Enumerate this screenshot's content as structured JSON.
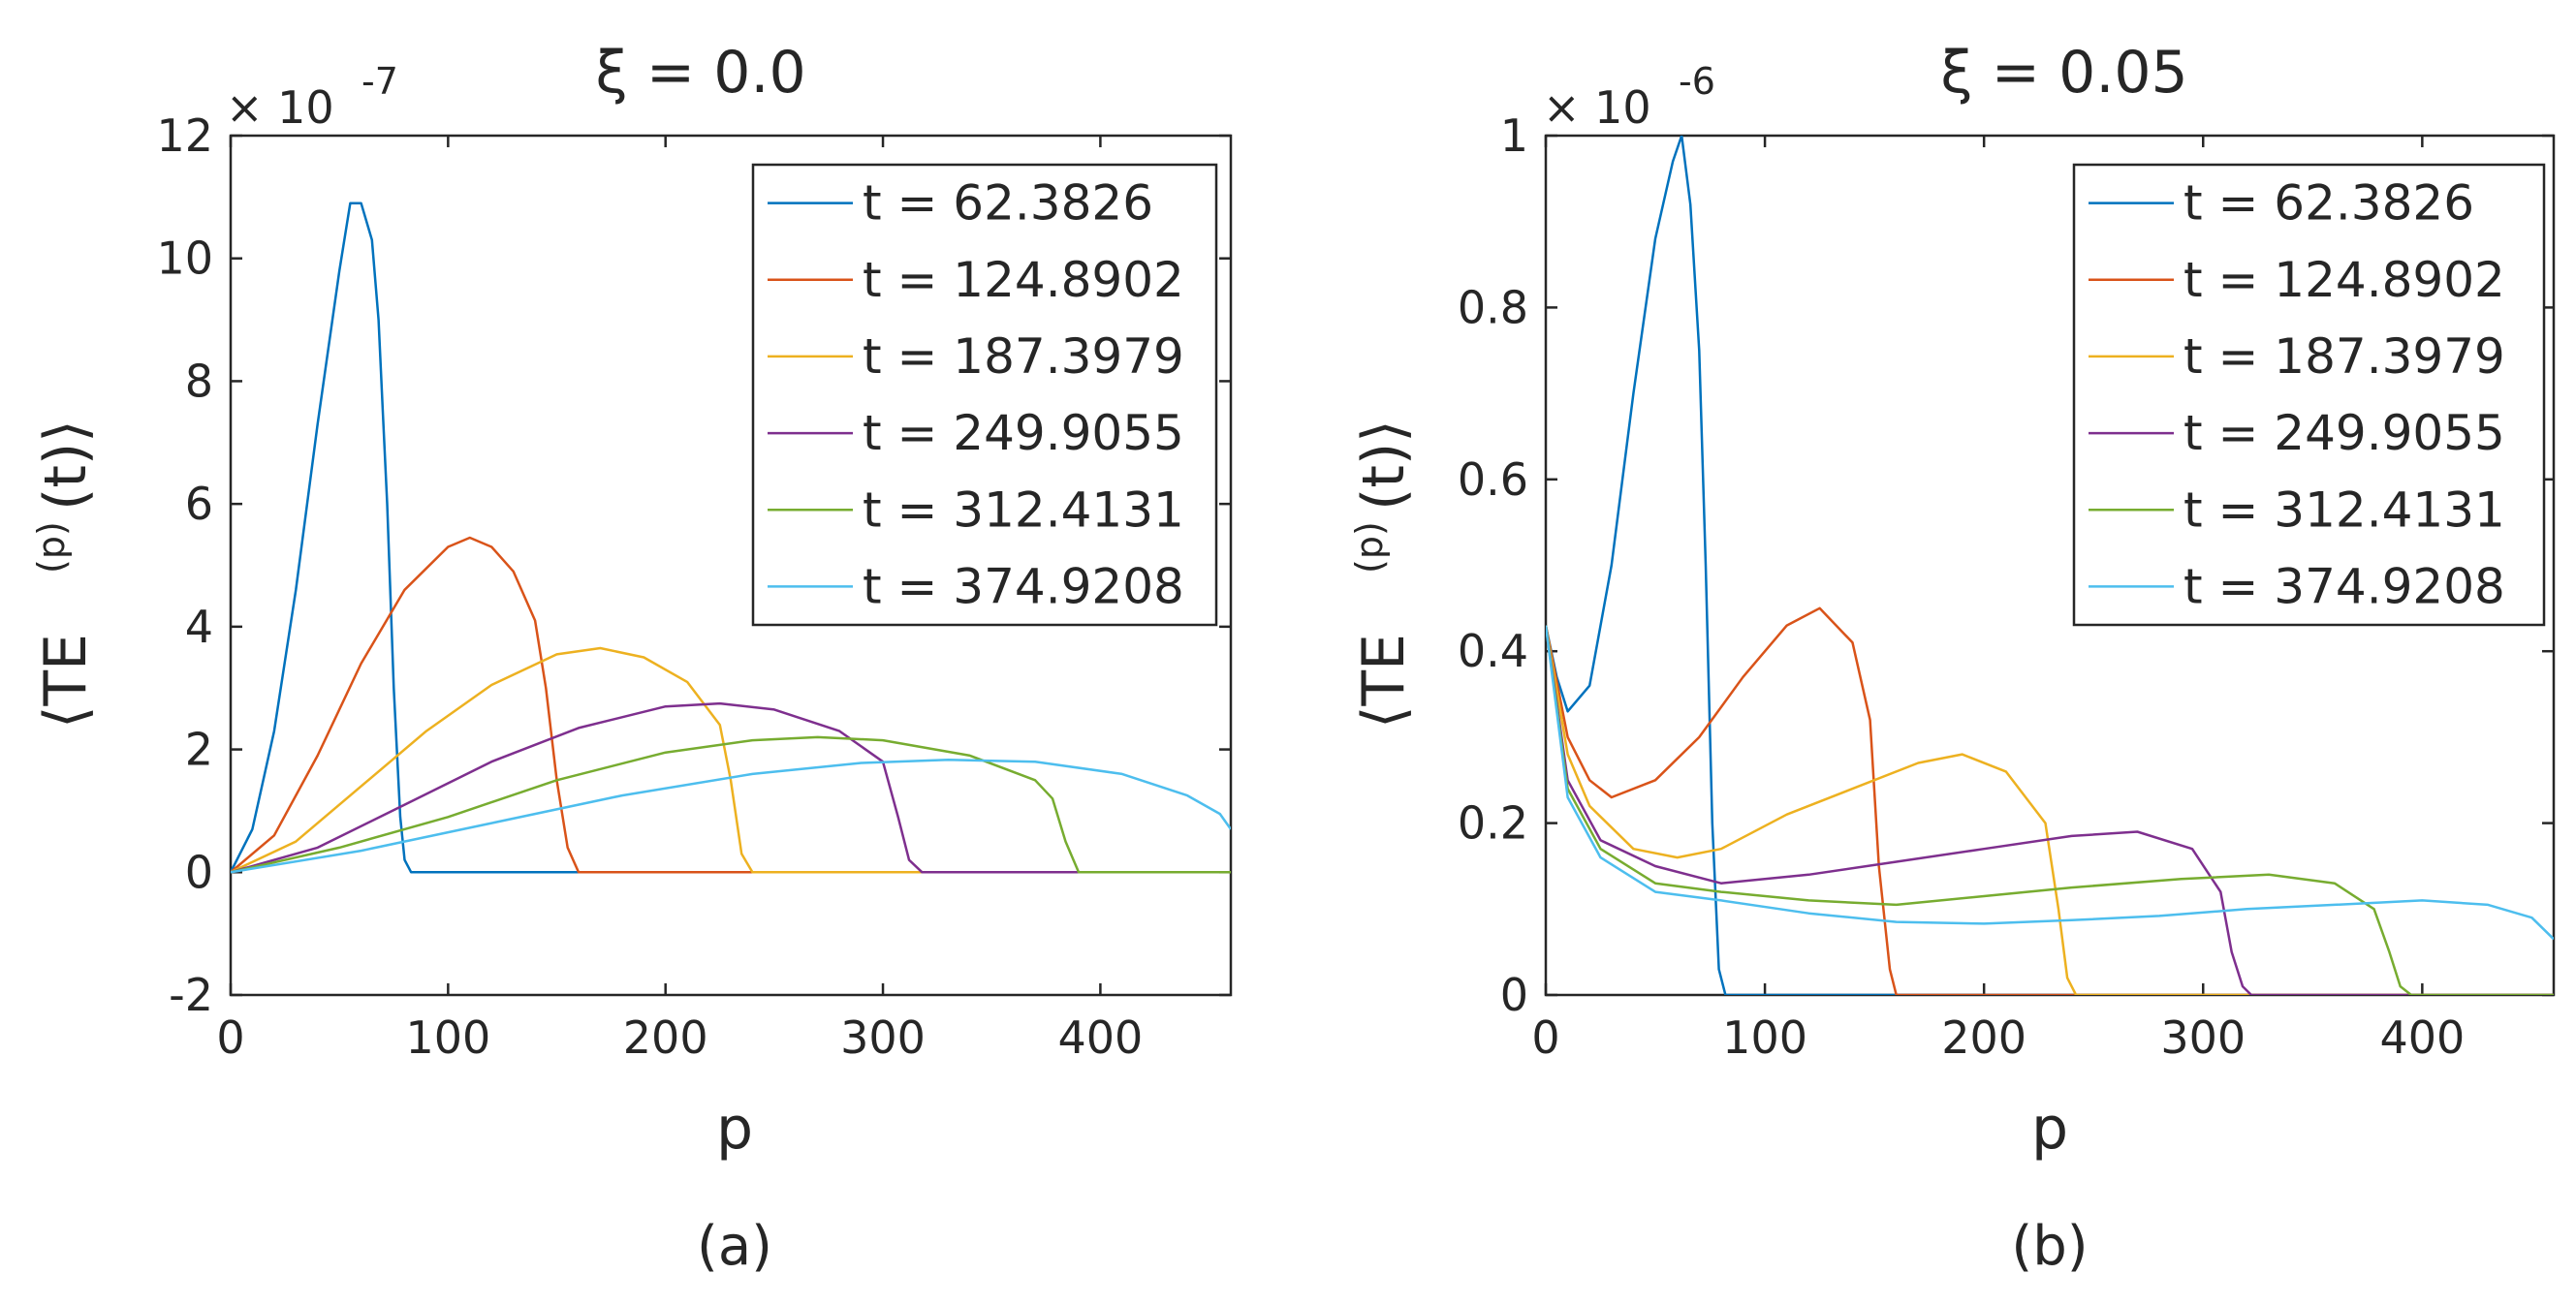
{
  "chart_data": [
    {
      "type": "line",
      "panel": "a",
      "caption": "(a)",
      "title": "ξ = 0.0",
      "xlabel": "p",
      "ylabel_main": "⟨TE",
      "ylabel_sup": "(p)",
      "ylabel_tail": "(t)⟩",
      "y_exponent": "× 10",
      "y_exponent_power": "-7",
      "xlim": [
        0,
        460
      ],
      "ylim": [
        -2,
        12
      ],
      "xticks": [
        0,
        100,
        200,
        300,
        400
      ],
      "yticks": [
        -2,
        0,
        2,
        4,
        6,
        8,
        10,
        12
      ],
      "xtick_labels": [
        "0",
        "100",
        "200",
        "300",
        "400"
      ],
      "ytick_labels": [
        "-2",
        "0",
        "2",
        "4",
        "6",
        "8",
        "10",
        "12"
      ],
      "legend_position": "top-right",
      "series": [
        {
          "name": "t = 62.3826",
          "color": "#0072BD",
          "points": [
            [
              0,
              0
            ],
            [
              10,
              0.7
            ],
            [
              20,
              2.3
            ],
            [
              30,
              4.6
            ],
            [
              40,
              7.3
            ],
            [
              50,
              9.8
            ],
            [
              55,
              10.9
            ],
            [
              60,
              10.9
            ],
            [
              65,
              10.3
            ],
            [
              68,
              9.0
            ],
            [
              70,
              7.5
            ],
            [
              72,
              6.0
            ],
            [
              75,
              3.0
            ],
            [
              78,
              0.9
            ],
            [
              80,
              0.2
            ],
            [
              83,
              0
            ],
            [
              460,
              0
            ]
          ]
        },
        {
          "name": "t = 124.8902",
          "color": "#D95319",
          "points": [
            [
              0,
              0
            ],
            [
              20,
              0.6
            ],
            [
              40,
              1.9
            ],
            [
              60,
              3.4
            ],
            [
              80,
              4.6
            ],
            [
              100,
              5.3
            ],
            [
              110,
              5.45
            ],
            [
              120,
              5.3
            ],
            [
              130,
              4.9
            ],
            [
              140,
              4.1
            ],
            [
              145,
              3.0
            ],
            [
              150,
              1.5
            ],
            [
              155,
              0.4
            ],
            [
              160,
              0
            ],
            [
              460,
              0
            ]
          ]
        },
        {
          "name": "t = 187.3979",
          "color": "#EDB120",
          "points": [
            [
              0,
              0
            ],
            [
              30,
              0.5
            ],
            [
              60,
              1.4
            ],
            [
              90,
              2.3
            ],
            [
              120,
              3.05
            ],
            [
              150,
              3.55
            ],
            [
              170,
              3.65
            ],
            [
              190,
              3.5
            ],
            [
              210,
              3.1
            ],
            [
              225,
              2.4
            ],
            [
              230,
              1.5
            ],
            [
              235,
              0.3
            ],
            [
              240,
              0
            ],
            [
              460,
              0
            ]
          ]
        },
        {
          "name": "t = 249.9055",
          "color": "#7E2F8E",
          "points": [
            [
              0,
              0
            ],
            [
              40,
              0.4
            ],
            [
              80,
              1.1
            ],
            [
              120,
              1.8
            ],
            [
              160,
              2.35
            ],
            [
              200,
              2.7
            ],
            [
              225,
              2.75
            ],
            [
              250,
              2.65
            ],
            [
              280,
              2.3
            ],
            [
              300,
              1.8
            ],
            [
              307,
              0.9
            ],
            [
              312,
              0.2
            ],
            [
              318,
              0
            ],
            [
              460,
              0
            ]
          ]
        },
        {
          "name": "t = 312.4131",
          "color": "#77AC30",
          "points": [
            [
              0,
              0
            ],
            [
              50,
              0.4
            ],
            [
              100,
              0.9
            ],
            [
              150,
              1.5
            ],
            [
              200,
              1.95
            ],
            [
              240,
              2.15
            ],
            [
              270,
              2.2
            ],
            [
              300,
              2.15
            ],
            [
              340,
              1.9
            ],
            [
              370,
              1.5
            ],
            [
              378,
              1.2
            ],
            [
              384,
              0.5
            ],
            [
              390,
              0
            ],
            [
              460,
              0
            ]
          ]
        },
        {
          "name": "t = 374.9208",
          "color": "#4DBEEE",
          "points": [
            [
              0,
              0
            ],
            [
              60,
              0.35
            ],
            [
              120,
              0.8
            ],
            [
              180,
              1.25
            ],
            [
              240,
              1.6
            ],
            [
              290,
              1.78
            ],
            [
              330,
              1.83
            ],
            [
              370,
              1.8
            ],
            [
              410,
              1.6
            ],
            [
              440,
              1.25
            ],
            [
              455,
              0.95
            ],
            [
              460,
              0.7
            ]
          ]
        }
      ]
    },
    {
      "type": "line",
      "panel": "b",
      "caption": "(b)",
      "title": "ξ = 0.05",
      "xlabel": "p",
      "ylabel_main": "⟨TE",
      "ylabel_sup": "(p)",
      "ylabel_tail": "(t)⟩",
      "y_exponent": "× 10",
      "y_exponent_power": "-6",
      "xlim": [
        0,
        460
      ],
      "ylim": [
        0,
        1
      ],
      "xticks": [
        0,
        100,
        200,
        300,
        400
      ],
      "yticks": [
        0,
        0.2,
        0.4,
        0.6,
        0.8,
        1
      ],
      "xtick_labels": [
        "0",
        "100",
        "200",
        "300",
        "400"
      ],
      "ytick_labels": [
        "0",
        "0.2",
        "0.4",
        "0.6",
        "0.8",
        "1"
      ],
      "legend_position": "top-right",
      "series": [
        {
          "name": "t = 62.3826",
          "color": "#0072BD",
          "points": [
            [
              0,
              0.43
            ],
            [
              5,
              0.37
            ],
            [
              10,
              0.33
            ],
            [
              20,
              0.36
            ],
            [
              30,
              0.5
            ],
            [
              40,
              0.7
            ],
            [
              50,
              0.88
            ],
            [
              58,
              0.97
            ],
            [
              62,
              1.0
            ],
            [
              66,
              0.92
            ],
            [
              70,
              0.75
            ],
            [
              73,
              0.5
            ],
            [
              76,
              0.2
            ],
            [
              79,
              0.03
            ],
            [
              82,
              0
            ],
            [
              460,
              0
            ]
          ]
        },
        {
          "name": "t = 124.8902",
          "color": "#D95319",
          "points": [
            [
              0,
              0.43
            ],
            [
              10,
              0.3
            ],
            [
              20,
              0.25
            ],
            [
              30,
              0.23
            ],
            [
              50,
              0.25
            ],
            [
              70,
              0.3
            ],
            [
              90,
              0.37
            ],
            [
              110,
              0.43
            ],
            [
              125,
              0.45
            ],
            [
              140,
              0.41
            ],
            [
              148,
              0.32
            ],
            [
              152,
              0.15
            ],
            [
              157,
              0.03
            ],
            [
              160,
              0
            ],
            [
              460,
              0
            ]
          ]
        },
        {
          "name": "t = 187.3979",
          "color": "#EDB120",
          "points": [
            [
              0,
              0.43
            ],
            [
              10,
              0.28
            ],
            [
              20,
              0.22
            ],
            [
              40,
              0.17
            ],
            [
              60,
              0.16
            ],
            [
              80,
              0.17
            ],
            [
              110,
              0.21
            ],
            [
              140,
              0.24
            ],
            [
              170,
              0.27
            ],
            [
              190,
              0.28
            ],
            [
              210,
              0.26
            ],
            [
              228,
              0.2
            ],
            [
              234,
              0.1
            ],
            [
              238,
              0.02
            ],
            [
              242,
              0
            ],
            [
              460,
              0
            ]
          ]
        },
        {
          "name": "t = 249.9055",
          "color": "#7E2F8E",
          "points": [
            [
              0,
              0.43
            ],
            [
              10,
              0.25
            ],
            [
              25,
              0.18
            ],
            [
              50,
              0.15
            ],
            [
              80,
              0.13
            ],
            [
              120,
              0.14
            ],
            [
              160,
              0.155
            ],
            [
              200,
              0.17
            ],
            [
              240,
              0.185
            ],
            [
              270,
              0.19
            ],
            [
              295,
              0.17
            ],
            [
              308,
              0.12
            ],
            [
              313,
              0.05
            ],
            [
              318,
              0.01
            ],
            [
              322,
              0
            ],
            [
              460,
              0
            ]
          ]
        },
        {
          "name": "t = 312.4131",
          "color": "#77AC30",
          "points": [
            [
              0,
              0.43
            ],
            [
              10,
              0.24
            ],
            [
              25,
              0.17
            ],
            [
              50,
              0.13
            ],
            [
              80,
              0.12
            ],
            [
              120,
              0.11
            ],
            [
              160,
              0.105
            ],
            [
              200,
              0.115
            ],
            [
              240,
              0.125
            ],
            [
              290,
              0.135
            ],
            [
              330,
              0.14
            ],
            [
              360,
              0.13
            ],
            [
              378,
              0.1
            ],
            [
              385,
              0.05
            ],
            [
              390,
              0.01
            ],
            [
              395,
              0
            ],
            [
              460,
              0
            ]
          ]
        },
        {
          "name": "t = 374.9208",
          "color": "#4DBEEE",
          "points": [
            [
              0,
              0.43
            ],
            [
              10,
              0.23
            ],
            [
              25,
              0.16
            ],
            [
              50,
              0.12
            ],
            [
              80,
              0.11
            ],
            [
              120,
              0.095
            ],
            [
              160,
              0.085
            ],
            [
              200,
              0.083
            ],
            [
              240,
              0.087
            ],
            [
              280,
              0.092
            ],
            [
              320,
              0.1
            ],
            [
              360,
              0.105
            ],
            [
              400,
              0.11
            ],
            [
              430,
              0.105
            ],
            [
              450,
              0.09
            ],
            [
              460,
              0.065
            ]
          ]
        }
      ]
    }
  ]
}
